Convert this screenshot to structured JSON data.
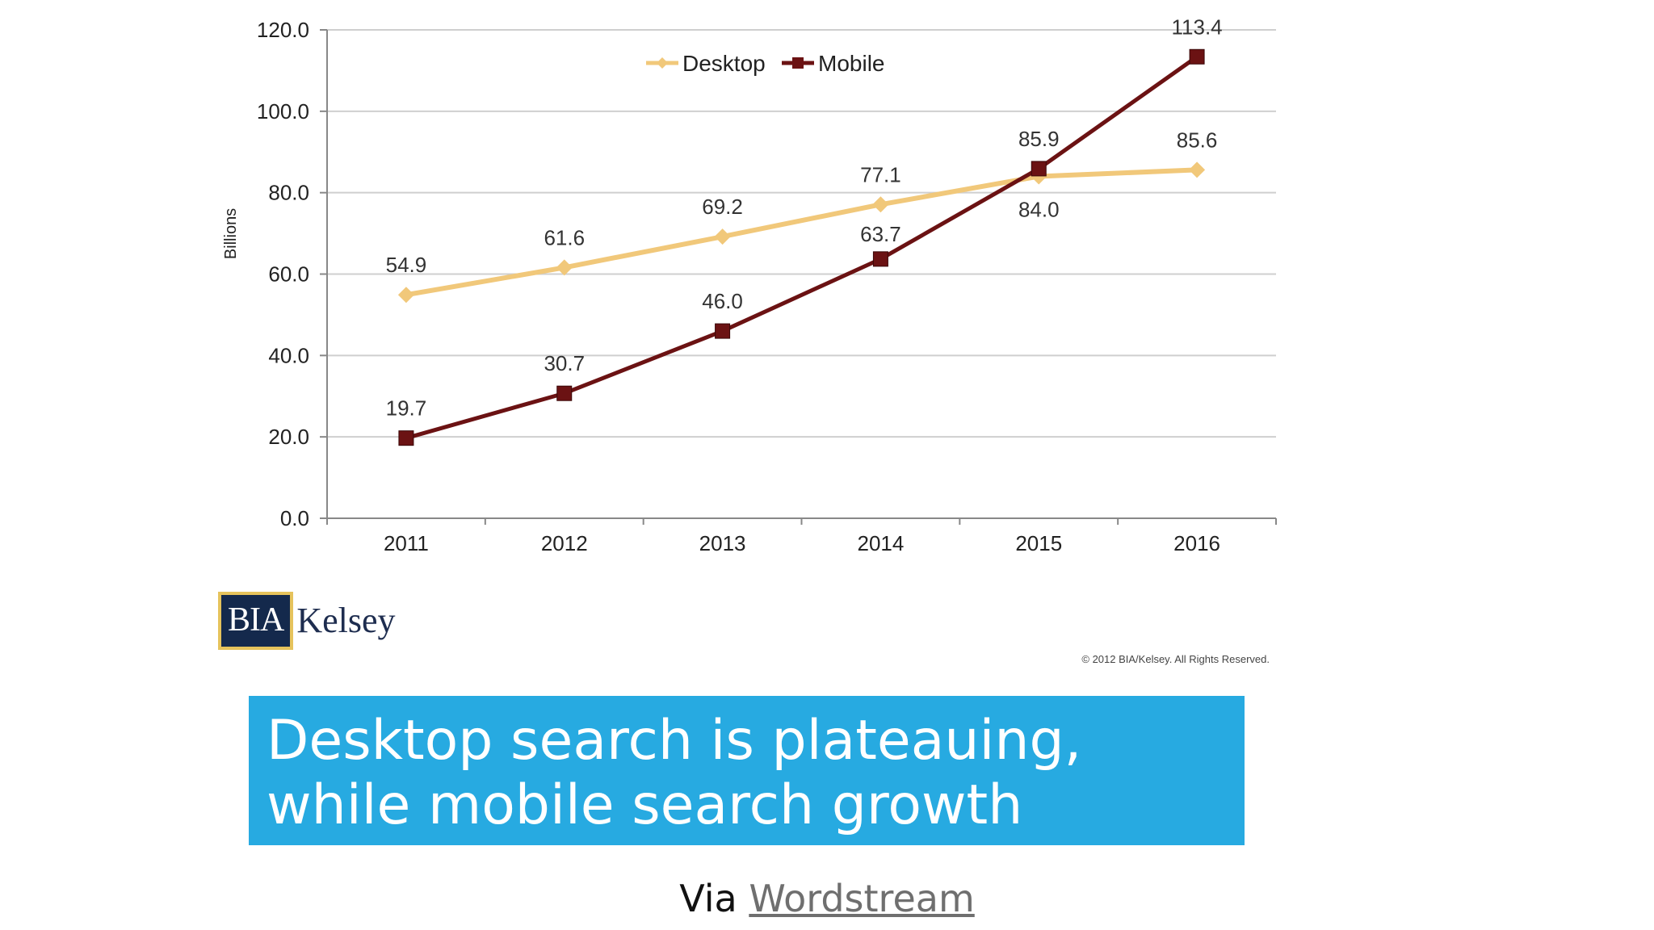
{
  "chart_data": {
    "type": "line",
    "categories": [
      "2011",
      "2012",
      "2013",
      "2014",
      "2015",
      "2016"
    ],
    "series": [
      {
        "name": "Desktop",
        "color": "#f1c87a",
        "marker": "diamond",
        "values": [
          54.9,
          61.6,
          69.2,
          77.1,
          84.0,
          85.6
        ]
      },
      {
        "name": "Mobile",
        "color": "#6b1213",
        "marker": "square",
        "values": [
          19.7,
          30.7,
          46.0,
          63.7,
          85.9,
          113.4
        ]
      }
    ],
    "ylabel": "Billions",
    "ylim": [
      0,
      120
    ],
    "yticks": [
      0,
      20,
      40,
      60,
      80,
      100,
      120
    ],
    "ytick_format": "0.0",
    "grid": true,
    "legend_position": "top-center",
    "copyright": "© 2012 BIA/Kelsey. All Rights Reserved."
  },
  "logo": {
    "part1": "BIA",
    "part2": "Kelsey"
  },
  "banner": {
    "line1": "Desktop search is plateauing,",
    "line2": "while mobile search growth"
  },
  "via": {
    "prefix": "Via",
    "link": "Wordstream"
  }
}
